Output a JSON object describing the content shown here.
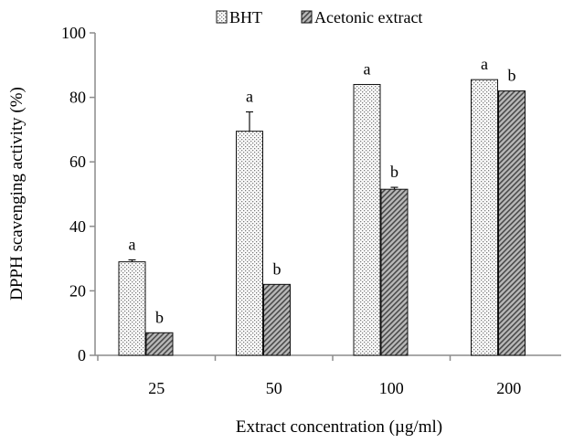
{
  "chart_data": {
    "type": "bar",
    "title": "",
    "xlabel": "Extract concentration (µg/ml)",
    "ylabel": "DPPH scavenging activity (%)",
    "categories": [
      "25",
      "50",
      "100",
      "200"
    ],
    "ylim": [
      0,
      100
    ],
    "yticks": [
      0,
      20,
      40,
      60,
      80,
      100
    ],
    "grid": false,
    "legend_position": "top",
    "series": [
      {
        "name": "BHT",
        "pattern": "dotted",
        "values": [
          29,
          69.5,
          84,
          85.5
        ],
        "errors": [
          0.6,
          6,
          0,
          0
        ],
        "letters": [
          "a",
          "a",
          "a",
          "a"
        ]
      },
      {
        "name": "Acetonic extract",
        "pattern": "hatched",
        "values": [
          7,
          22,
          51.5,
          82
        ],
        "errors": [
          0,
          0,
          0.6,
          0
        ],
        "letters": [
          "b",
          "b",
          "b",
          "b"
        ]
      }
    ]
  }
}
